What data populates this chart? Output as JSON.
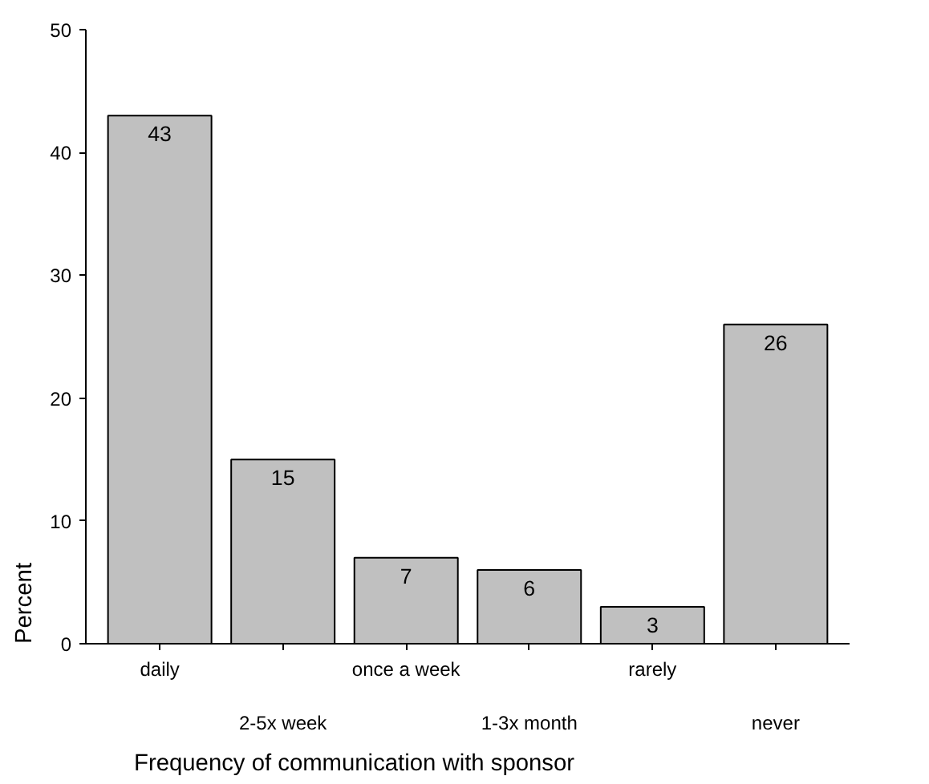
{
  "chart_data": {
    "type": "bar",
    "xlabel": "Frequency of communication with sponsor",
    "ylabel": "Percent",
    "categories": [
      "daily",
      "2-5x week",
      "once a week",
      "1-3x month",
      "rarely",
      "never"
    ],
    "values": [
      43,
      15,
      7,
      6,
      3,
      26
    ],
    "color": "#c0c0c0",
    "data_labels": true,
    "ylim": [
      0,
      50
    ],
    "yticks": [
      0,
      10,
      20,
      30,
      40,
      50
    ]
  }
}
